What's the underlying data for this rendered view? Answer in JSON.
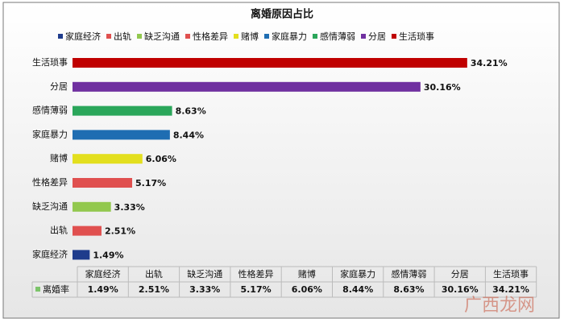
{
  "chart_data": {
    "type": "barh",
    "title": "离婚原因占比",
    "categories": [
      "家庭经济",
      "出轨",
      "缺乏沟通",
      "性格差异",
      "赌博",
      "家庭暴力",
      "感情薄弱",
      "分居",
      "生活琐事"
    ],
    "colors": [
      "#1f3c8c",
      "#e0504f",
      "#92c84e",
      "#e0504f",
      "#e3df1e",
      "#1f6db2",
      "#2aa65a",
      "#7030a0",
      "#c00000"
    ],
    "series": [
      {
        "name": "离婚率",
        "color": "#7cc46a",
        "values": [
          1.49,
          2.51,
          3.33,
          5.17,
          6.06,
          8.44,
          8.63,
          30.16,
          34.21
        ],
        "value_labels": [
          "1.49%",
          "2.51%",
          "3.33%",
          "5.17%",
          "6.06%",
          "8.44%",
          "8.63%",
          "30.16%",
          "34.21%"
        ]
      }
    ],
    "xlim": [
      0,
      34.5
    ],
    "watermark": "广西龙网"
  }
}
